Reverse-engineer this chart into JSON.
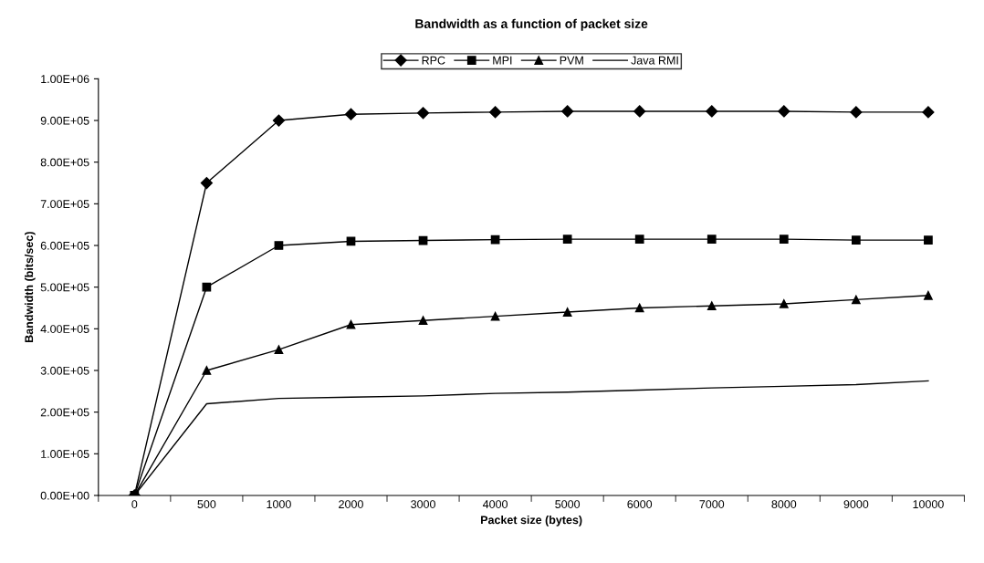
{
  "chart_data": {
    "type": "line",
    "title": "Bandwidth as a function of packet size",
    "xlabel": "Packet size (bytes)",
    "ylabel": "Bandwidth (bits/sec)",
    "categories": [
      "0",
      "500",
      "1000",
      "2000",
      "3000",
      "4000",
      "5000",
      "6000",
      "7000",
      "8000",
      "9000",
      "10000"
    ],
    "series": [
      {
        "name": "RPC",
        "color": "#000000",
        "marker": "diamond",
        "values": [
          0,
          750000,
          900000,
          915000,
          918000,
          920000,
          922000,
          922000,
          922000,
          922000,
          920000,
          920000
        ]
      },
      {
        "name": "MPI",
        "color": "#000000",
        "marker": "square",
        "values": [
          0,
          500000,
          600000,
          610000,
          612000,
          614000,
          615000,
          615000,
          615000,
          615000,
          613000,
          613000
        ]
      },
      {
        "name": "PVM",
        "color": "#000000",
        "marker": "triangle",
        "values": [
          0,
          300000,
          350000,
          410000,
          420000,
          430000,
          440000,
          450000,
          455000,
          460000,
          470000,
          480000
        ]
      },
      {
        "name": "Java RMI",
        "color": "#000000",
        "marker": "none",
        "values": [
          0,
          220000,
          233000,
          236000,
          239000,
          245000,
          248000,
          253000,
          258000,
          262000,
          266000,
          275000
        ]
      }
    ],
    "ylim": [
      0,
      1000000
    ],
    "yticks": [
      {
        "value": 0,
        "label": "0.00E+00"
      },
      {
        "value": 100000,
        "label": "1.00E+05"
      },
      {
        "value": 200000,
        "label": "2.00E+05"
      },
      {
        "value": 300000,
        "label": "3.00E+05"
      },
      {
        "value": 400000,
        "label": "4.00E+05"
      },
      {
        "value": 500000,
        "label": "5.00E+05"
      },
      {
        "value": 600000,
        "label": "6.00E+05"
      },
      {
        "value": 700000,
        "label": "7.00E+05"
      },
      {
        "value": 800000,
        "label": "8.00E+05"
      },
      {
        "value": 900000,
        "label": "9.00E+05"
      },
      {
        "value": 1000000,
        "label": "1.00E+06"
      }
    ],
    "grid": false,
    "legend": "top",
    "line_style": "solid"
  }
}
